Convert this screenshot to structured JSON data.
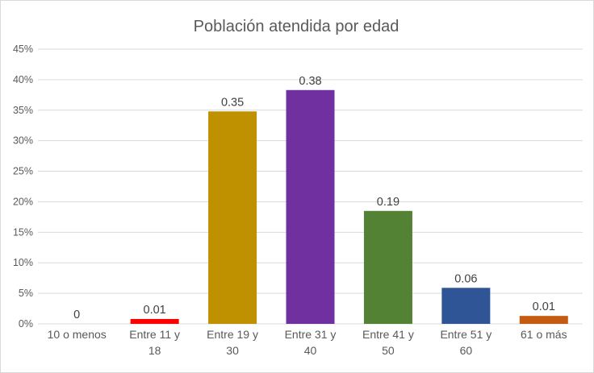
{
  "chart_data": {
    "type": "bar",
    "title": "Población atendida por edad",
    "categories": [
      [
        "10 o menos"
      ],
      [
        "Entre 11 y",
        "18"
      ],
      [
        "Entre 19 y",
        "30"
      ],
      [
        "Entre 31 y",
        "40"
      ],
      [
        "Entre 41 y",
        "50"
      ],
      [
        "Entre 51 y",
        "60"
      ],
      [
        "61 o más"
      ]
    ],
    "values": [
      0,
      0.008,
      0.348,
      0.383,
      0.185,
      0.059,
      0.013
    ],
    "data_labels": [
      "0",
      "0.01",
      "0.35",
      "0.38",
      "0.19",
      "0.06",
      "0.01"
    ],
    "colors": [
      "#4472c4",
      "#ff0000",
      "#bf9000",
      "#7030a0",
      "#548235",
      "#2f5597",
      "#c55a11"
    ],
    "ylim": [
      0,
      0.45
    ],
    "yticks": [
      0,
      0.05,
      0.1,
      0.15,
      0.2,
      0.25,
      0.3,
      0.35,
      0.4,
      0.45
    ],
    "ytick_labels": [
      "0%",
      "5%",
      "10%",
      "15%",
      "20%",
      "25%",
      "30%",
      "35%",
      "40%",
      "45%"
    ],
    "grid": true,
    "legend": "none"
  }
}
